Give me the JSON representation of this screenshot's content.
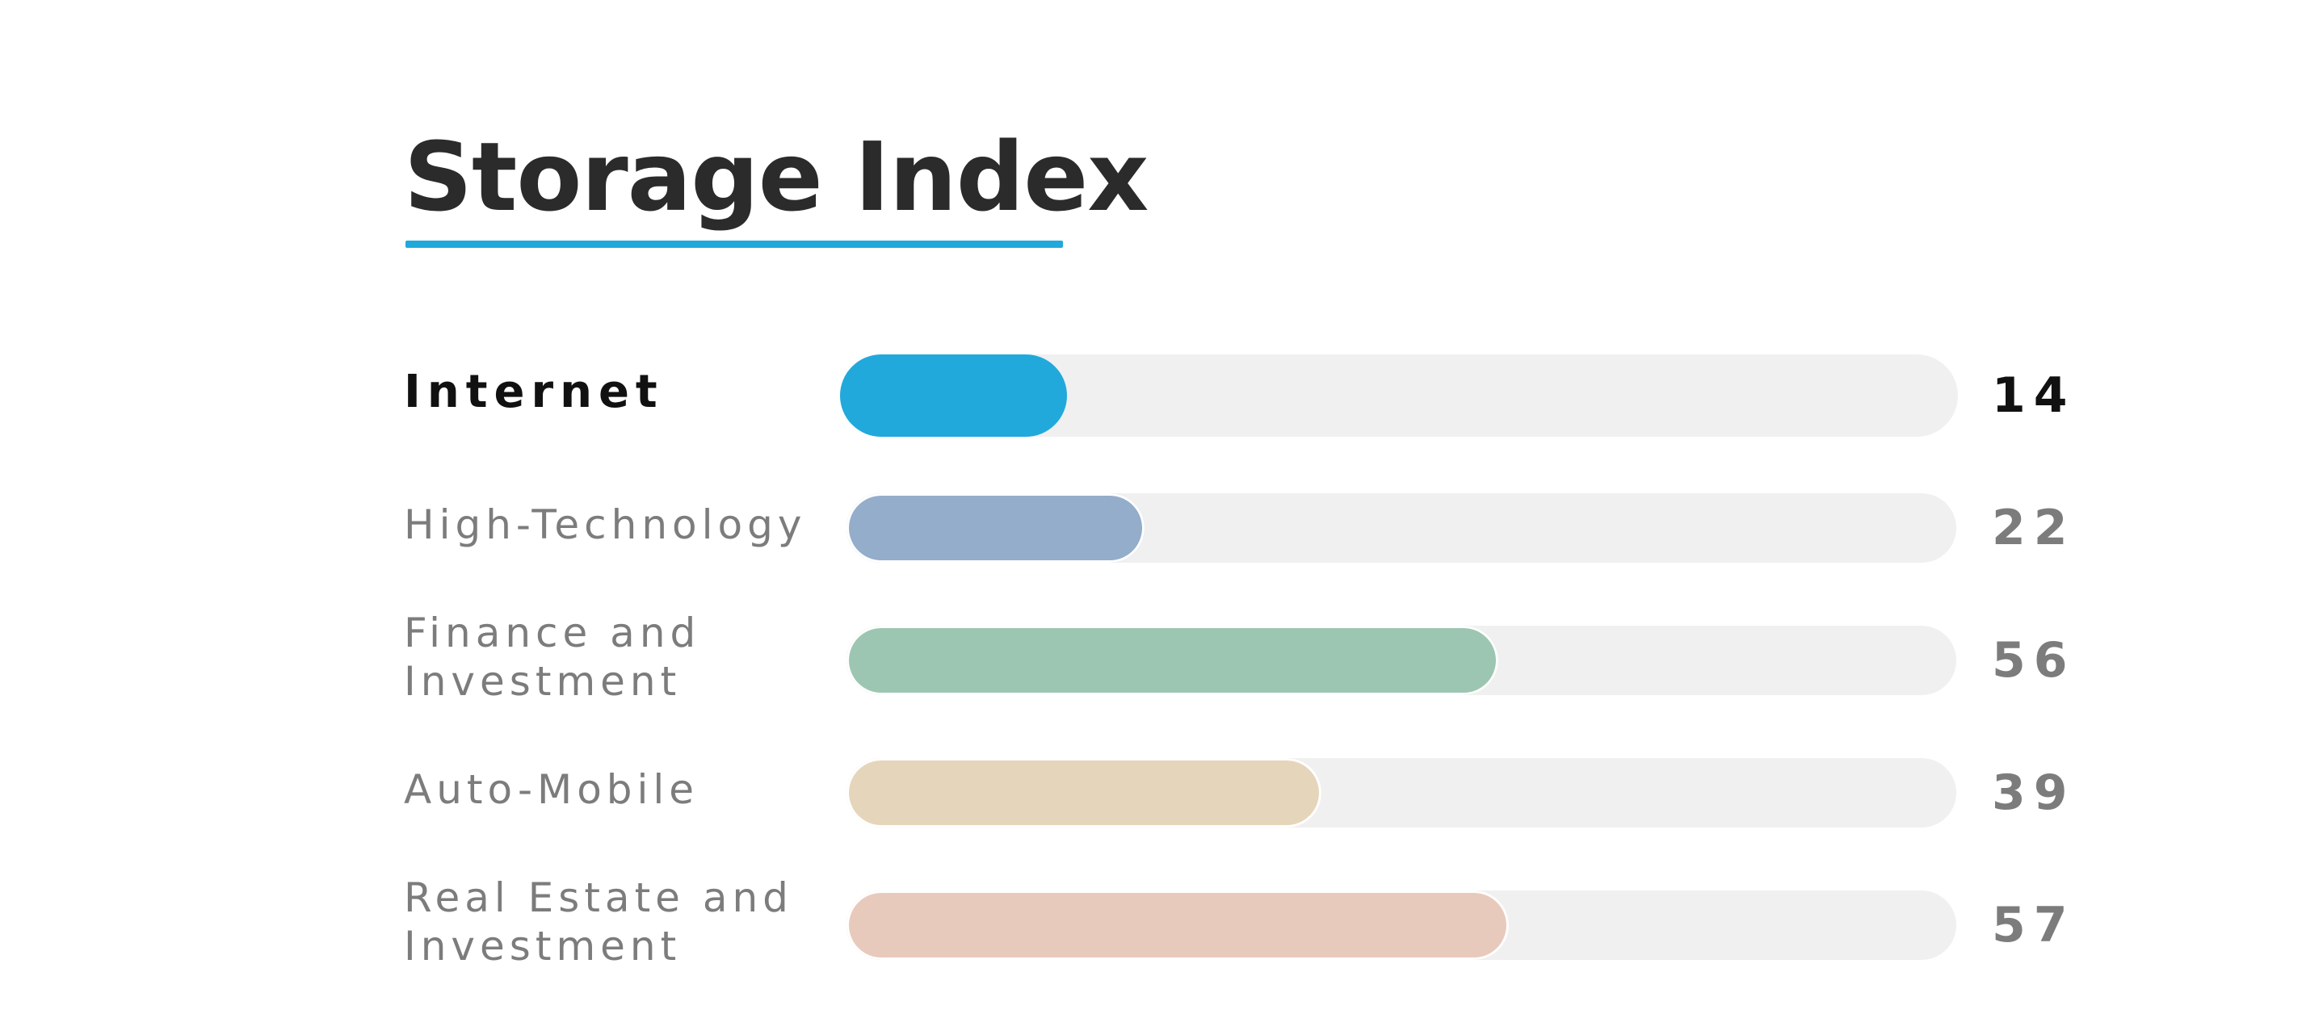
{
  "chart_data": {
    "type": "bar",
    "orientation": "horizontal",
    "title": "Storage Index",
    "categories": [
      "Internet",
      "High-Technology",
      "Finance and Investment",
      "Auto-Mobile",
      "Real Estate and Investment"
    ],
    "values": [
      14,
      22,
      56,
      39,
      57
    ],
    "xlim": [
      0,
      100
    ],
    "grid": false,
    "legend": "none",
    "highlight_index": 0,
    "colors": [
      "#21a9dc",
      "#93adca",
      "#9dc6b2",
      "#e5d5ba",
      "#e8cabc"
    ],
    "track_color": "#f0f0f0",
    "accent_color": "#21a9dc"
  }
}
